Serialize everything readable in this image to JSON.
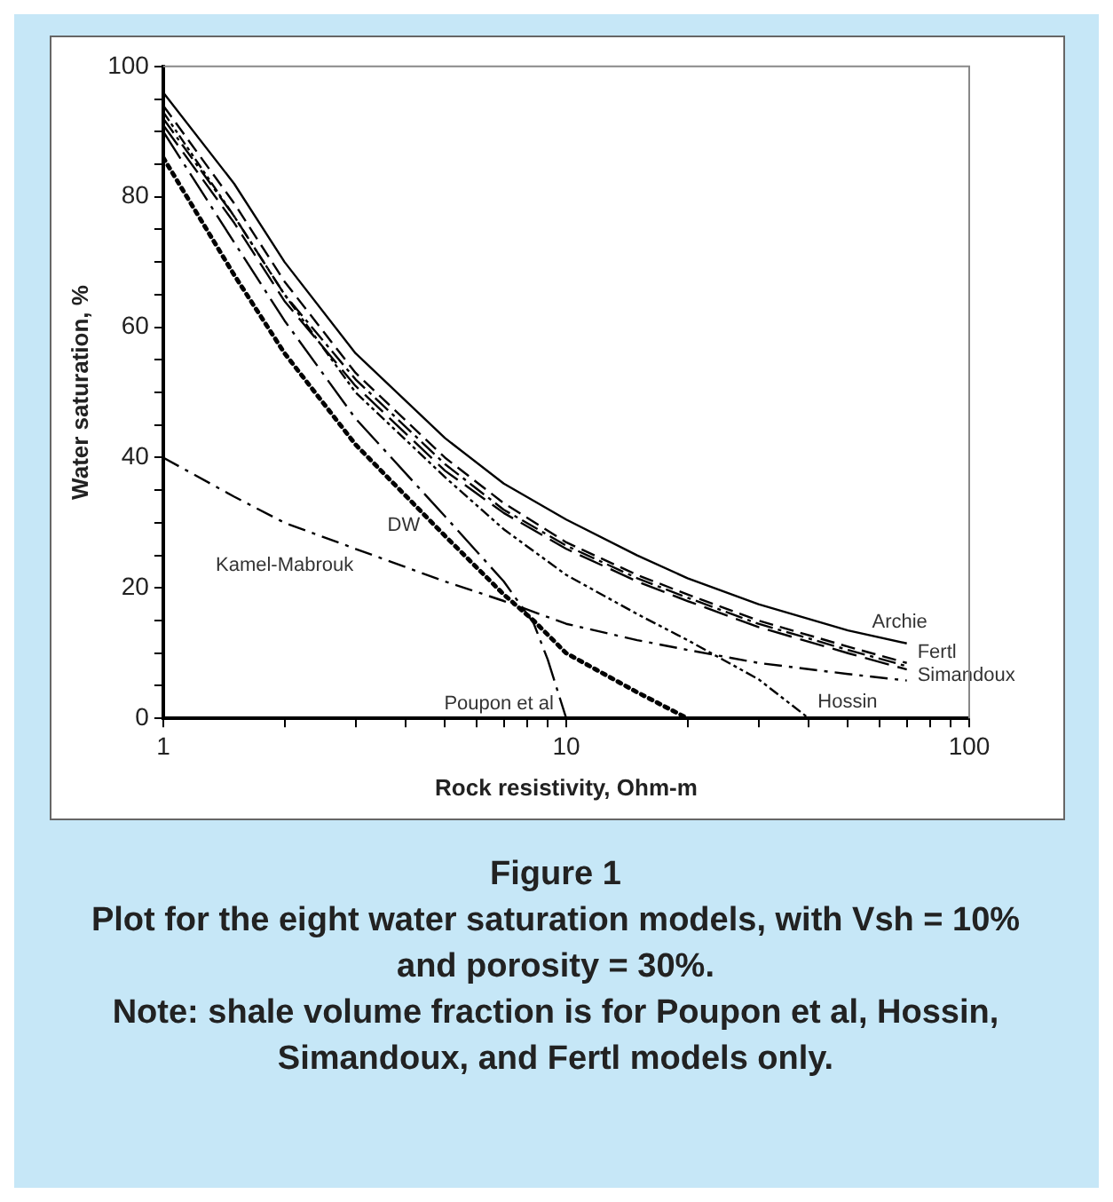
{
  "chart_data": {
    "type": "line",
    "title": "Figure 1",
    "subtitle": "Plot for the eight water saturation models, with Vsh = 10% and porosity = 30%.",
    "annotations": [
      "Note: shale volume fraction  is for Poupon et al, Hossin, Simandoux, and Fertl models only."
    ],
    "xlabel": "Rock resistivity, Ohm-m",
    "ylabel": "Water saturation, %",
    "log": "x",
    "xlim": [
      1,
      100
    ],
    "xticks": [
      1,
      {
        "value": 2,
        "label": null
      },
      {
        "value": 3,
        "label": null
      },
      {
        "value": 4,
        "label": null
      },
      {
        "value": 5,
        "label": null
      },
      {
        "value": 6,
        "label": null
      },
      {
        "value": 7,
        "label": null
      },
      {
        "value": 8,
        "label": null
      },
      {
        "value": 9,
        "label": null
      },
      10,
      {
        "value": 20,
        "label": null
      },
      {
        "value": 30,
        "label": null
      },
      {
        "value": 40,
        "label": null
      },
      {
        "value": 50,
        "label": null
      },
      {
        "value": 60,
        "label": null
      },
      {
        "value": 70,
        "label": null
      },
      {
        "value": 80,
        "label": null
      },
      {
        "value": 90,
        "label": null
      },
      100
    ],
    "ylim": [
      0,
      100
    ],
    "yticks": [
      0,
      {
        "value": 5,
        "label": null
      },
      {
        "value": 10,
        "label": null
      },
      {
        "value": 15,
        "label": null
      },
      20,
      {
        "value": 25,
        "label": null
      },
      {
        "value": 30,
        "label": null
      },
      {
        "value": 35,
        "label": null
      },
      40,
      {
        "value": 45,
        "label": null
      },
      {
        "value": 50,
        "label": null
      },
      {
        "value": 55,
        "label": null
      },
      60,
      {
        "value": 65,
        "label": null
      },
      {
        "value": 70,
        "label": null
      },
      {
        "value": 75,
        "label": null
      },
      80,
      {
        "value": 85,
        "label": null
      },
      {
        "value": 90,
        "label": null
      },
      {
        "value": 95,
        "label": null
      },
      100
    ],
    "grid": false,
    "legend": false,
    "marker": "none",
    "series": [
      {
        "name": "Archie",
        "color": "#000000",
        "line_style": "solid",
        "x": [
          1,
          1.5,
          2,
          3,
          5,
          7,
          10,
          15,
          20,
          30,
          50,
          70
        ],
        "values": [
          96,
          82,
          70,
          56,
          43,
          36,
          30.5,
          25,
          21.5,
          17.5,
          13.5,
          11.5
        ]
      },
      {
        "name": "Fertl",
        "color": "#000000",
        "line_style": "dashed",
        "x": [
          1,
          1.5,
          2,
          3,
          5,
          7,
          10,
          15,
          20,
          30,
          50,
          70
        ],
        "values": [
          94,
          79,
          67,
          53,
          40,
          33,
          27,
          22,
          19,
          15,
          11,
          8.5
        ]
      },
      {
        "name": "Simandoux",
        "color": "#000000",
        "line_style": "dashed",
        "x": [
          1,
          1.5,
          2,
          3,
          5,
          7,
          10,
          15,
          20,
          30,
          50,
          70
        ],
        "values": [
          92,
          77,
          65,
          52,
          39,
          32,
          26.5,
          21.5,
          18.5,
          14.5,
          10.5,
          8
        ]
      },
      {
        "color": "#000000",
        "line_style": "dashed",
        "x": [
          1,
          1.5,
          2,
          3,
          5,
          7,
          10,
          15,
          20,
          30,
          50,
          70
        ],
        "values": [
          91,
          76,
          64,
          51,
          38,
          31.5,
          26,
          21,
          18,
          14,
          10,
          7.5
        ]
      },
      {
        "name": "Hossin",
        "color": "#000000",
        "line_style": "dashed",
        "x": [
          1,
          1.5,
          2,
          3,
          5,
          7,
          10,
          15,
          20,
          30,
          40
        ],
        "values": [
          93,
          77,
          65,
          50,
          37,
          29,
          22,
          16,
          12,
          6,
          0
        ]
      },
      {
        "name": "Poupon et al",
        "color": "#000000",
        "line_style": "dashed",
        "x": [
          1,
          1.5,
          2,
          3,
          5,
          7,
          8.3,
          9,
          10
        ],
        "values": [
          90,
          73,
          61,
          46,
          31,
          21,
          14.6,
          9,
          0
        ]
      },
      {
        "name": "DW",
        "color": "#000000",
        "line_style": "dotted",
        "x": [
          1,
          1.5,
          2,
          3,
          5,
          7,
          8.3,
          10,
          15,
          20
        ],
        "values": [
          86,
          68,
          56,
          42,
          28,
          19,
          15,
          10,
          4,
          0
        ]
      },
      {
        "name": "Kamel-Mabrouk",
        "color": "#000000",
        "line_style": "dashed",
        "x": [
          1,
          1.5,
          2,
          3,
          5,
          7,
          10,
          15,
          20,
          30,
          50,
          70
        ],
        "values": [
          40,
          34,
          30,
          26,
          21,
          18,
          14.5,
          12,
          10.5,
          8.5,
          6.8,
          5.8
        ]
      }
    ]
  }
}
